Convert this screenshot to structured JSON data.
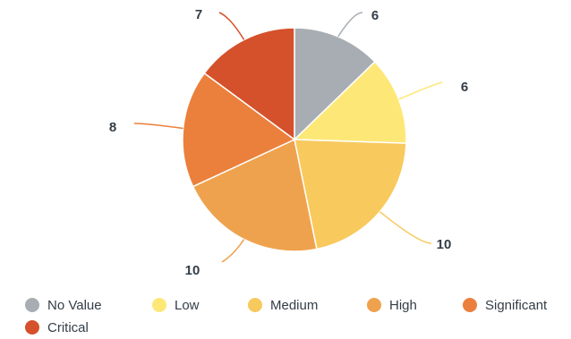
{
  "chart_data": {
    "type": "pie",
    "categories": [
      "No Value",
      "Low",
      "Medium",
      "High",
      "Significant",
      "Critical"
    ],
    "values": [
      6,
      6,
      10,
      10,
      8,
      7
    ],
    "colors": [
      "#a7adb3",
      "#fde877",
      "#f8c95d",
      "#efa24d",
      "#eb803c",
      "#d4512b"
    ],
    "legend_position": "bottom-left"
  }
}
